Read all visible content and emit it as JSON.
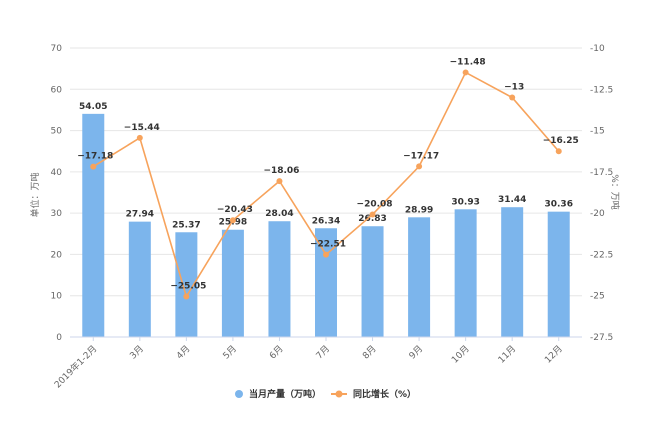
{
  "chart_data": {
    "type": "bar",
    "categories": [
      "2019年1-2月",
      "3月",
      "4月",
      "5月",
      "6月",
      "7月",
      "8月",
      "9月",
      "10月",
      "11月",
      "12月"
    ],
    "series": [
      {
        "name": "当月产量（万吨）",
        "type": "bar",
        "axis": "left",
        "color": "#7cb5ec",
        "values": [
          54.05,
          27.94,
          25.37,
          25.98,
          28.04,
          26.34,
          26.83,
          28.99,
          30.93,
          31.44,
          30.36
        ],
        "labels": [
          "54.05",
          "27.94",
          "25.37",
          "25.98",
          "28.04",
          "26.34",
          "26.83",
          "28.99",
          "30.93",
          "31.44",
          "30.36"
        ]
      },
      {
        "name": "同比增长（%）",
        "type": "line",
        "axis": "right",
        "color": "#f7a35c",
        "values": [
          -17.18,
          -15.44,
          -25.05,
          -20.43,
          -18.06,
          -22.51,
          -20.08,
          -17.17,
          -11.48,
          -13,
          -16.25
        ],
        "labels": [
          "−17.18",
          "−15.44",
          "−25.05",
          "−20.43",
          "−18.06",
          "−22.51",
          "−20.08",
          "−17.17",
          "−11.48",
          "−13",
          "−16.25"
        ]
      }
    ],
    "y_left": {
      "label": "单位：万吨",
      "ylim": [
        0,
        70
      ],
      "ticks": [
        0,
        10,
        20,
        30,
        40,
        50,
        60,
        70
      ],
      "tick_labels": [
        "0",
        "10",
        "20",
        "30",
        "40",
        "50",
        "60",
        "70"
      ]
    },
    "y_right": {
      "label": "%：万吨",
      "ylim": [
        -27.5,
        -10
      ],
      "ticks": [
        -27.5,
        -25,
        -22.5,
        -20,
        -17.5,
        -15,
        -12.5,
        -10
      ],
      "tick_labels": [
        "-27.5",
        "-25",
        "-22.5",
        "-20",
        "-17.5",
        "-15",
        "-12.5",
        "-10"
      ]
    },
    "grid": true,
    "legend": {
      "position": "bottom-center"
    }
  }
}
